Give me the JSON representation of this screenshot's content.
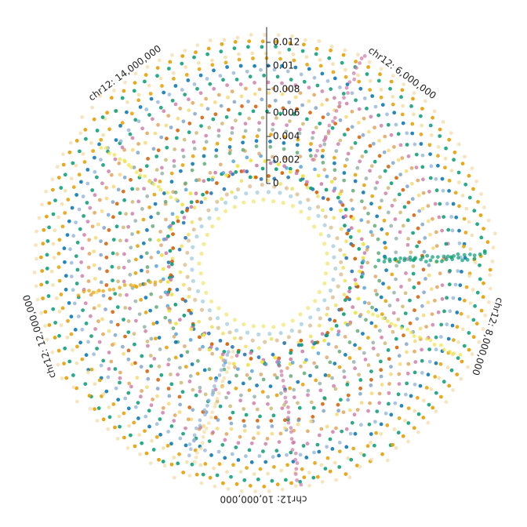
{
  "chart_data": {
    "type": "scatter",
    "title": "",
    "subtitle": "",
    "chromosome": "chr12",
    "position_labels": [
      {
        "text": "chr12: 6,000,000",
        "position": 6000000
      },
      {
        "text": "chr12: 8,000,000",
        "position": 8000000
      },
      {
        "text": "chr12: 10,000,000",
        "position": 10000000
      },
      {
        "text": "chr12: 12,000,000",
        "position": 12000000
      },
      {
        "text": "chr12: 14,000,000",
        "position": 14000000
      }
    ],
    "x_range": [
      4200000,
      14800000
    ],
    "radial_axis": {
      "ticks": [
        "0",
        "0.002",
        "0.004",
        "0.006",
        "0.008",
        "0.01",
        "0.012"
      ],
      "tick_values": [
        0,
        0.002,
        0.004,
        0.006,
        0.008,
        0.01,
        0.012
      ],
      "range": [
        0,
        0.0133
      ]
    },
    "legend": "none",
    "grid": false,
    "rings": [
      {
        "base": -0.0014,
        "color": "#f5ea8c",
        "alpha": 0.9
      },
      {
        "base": -0.0007,
        "color": "#a8cfe0",
        "alpha": 0.8
      },
      {
        "base": -0.0002,
        "color": "#d8b98a",
        "alpha": 0.75
      },
      {
        "base": 0.0003,
        "color": "#f0e060",
        "alpha": 0.85
      },
      {
        "base": 0.0008,
        "color": "#2a78b6",
        "alpha": 0.9
      },
      {
        "base": 0.0011,
        "color": "#d55e00",
        "alpha": 0.9
      },
      {
        "base": 0.0013,
        "color": "#0a9b73",
        "alpha": 0.9
      },
      {
        "base": 0.0015,
        "color": "#cc79a7",
        "alpha": 0.85
      },
      {
        "base": 0.0017,
        "color": "#f0e442",
        "alpha": 0.95
      },
      {
        "base": 0.0021,
        "color": "#4f9fd8",
        "alpha": 0.8
      },
      {
        "base": 0.0026,
        "color": "#d8a060",
        "alpha": 0.75
      },
      {
        "base": 0.0031,
        "color": "#5aa870",
        "alpha": 0.8
      },
      {
        "base": 0.0036,
        "color": "#0072b2",
        "alpha": 0.85
      },
      {
        "base": 0.0041,
        "color": "#e69f00",
        "alpha": 0.85
      },
      {
        "base": 0.0046,
        "color": "#88aaa0",
        "alpha": 0.75
      },
      {
        "base": 0.0051,
        "color": "#cc79a7",
        "alpha": 0.8
      },
      {
        "base": 0.0056,
        "color": "#c8b060",
        "alpha": 0.75
      },
      {
        "base": 0.0061,
        "color": "#009e73",
        "alpha": 0.85
      },
      {
        "base": 0.0066,
        "color": "#d55e00",
        "alpha": 0.85
      },
      {
        "base": 0.0071,
        "color": "#7aa0c8",
        "alpha": 0.8
      },
      {
        "base": 0.0076,
        "color": "#f5d76e",
        "alpha": 0.8
      },
      {
        "base": 0.0081,
        "color": "#e0a050",
        "alpha": 0.8
      },
      {
        "base": 0.0086,
        "color": "#cc79a7",
        "alpha": 0.8
      },
      {
        "base": 0.0091,
        "color": "#0a9b73",
        "alpha": 0.85
      },
      {
        "base": 0.0096,
        "color": "#8fb0d8",
        "alpha": 0.75
      },
      {
        "base": 0.0101,
        "color": "#0072b2",
        "alpha": 0.85
      },
      {
        "base": 0.0106,
        "color": "#e69f00",
        "alpha": 0.85
      },
      {
        "base": 0.0111,
        "color": "#f2dca0",
        "alpha": 0.8
      },
      {
        "base": 0.0116,
        "color": "#009e73",
        "alpha": 0.85
      },
      {
        "base": 0.0121,
        "color": "#e69f00",
        "alpha": 0.9
      },
      {
        "base": 0.0126,
        "color": "#f5ddb0",
        "alpha": 0.8
      }
    ]
  }
}
